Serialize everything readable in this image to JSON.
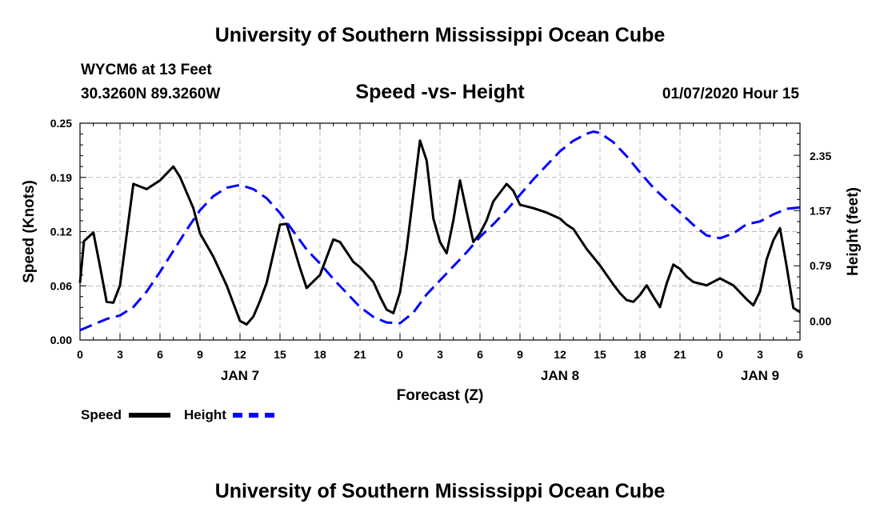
{
  "titles": {
    "top": "University of Southern Mississippi Ocean Cube",
    "bottom": "University of Southern Mississippi Ocean Cube",
    "station_name": "WYCM6 at 13 Feet",
    "station_coords": "30.3260N 89.3260W",
    "date": "01/07/2020 Hour 15"
  },
  "legend": {
    "speed": "Speed",
    "height": "Height"
  },
  "colors": {
    "speed": "#000000",
    "height": "#0000ff",
    "grid": "#bbbbbb"
  },
  "chart_data": {
    "type": "line",
    "title": "Speed -vs- Height",
    "xlabel": "Forecast (Z)",
    "ylabel": "Speed (Knots)",
    "y2label": "Height (feet)",
    "xlim": [
      0,
      54
    ],
    "ylim": [
      0,
      0.25
    ],
    "y2lim": [
      -0.27,
      2.82
    ],
    "y_ticks": [
      "0.00",
      "0.06",
      "0.12",
      "0.19",
      "0.25"
    ],
    "y_tick_values": [
      0,
      0.0625,
      0.125,
      0.1875,
      0.25
    ],
    "y2_ticks": [
      "0.00",
      "0.79",
      "1.57",
      "2.35"
    ],
    "y2_tick_values": [
      0,
      0.79,
      1.57,
      2.35
    ],
    "x_ticks": [
      "0",
      "3",
      "6",
      "9",
      "12",
      "15",
      "18",
      "21",
      "0",
      "3",
      "6",
      "9",
      "12",
      "15",
      "18",
      "21",
      "0",
      "3",
      "6"
    ],
    "day_labels": [
      {
        "label": "JAN 7",
        "at": 12
      },
      {
        "label": "JAN 8",
        "at": 36
      },
      {
        "label": "JAN 9",
        "at": 51
      }
    ],
    "grid": true,
    "series": [
      {
        "name": "Speed",
        "axis": "left",
        "style": "solid",
        "points": [
          [
            0,
            0.066
          ],
          [
            0.3,
            0.114
          ],
          [
            1,
            0.124
          ],
          [
            1.5,
            0.085
          ],
          [
            2,
            0.044
          ],
          [
            2.5,
            0.043
          ],
          [
            3,
            0.063
          ],
          [
            4,
            0.18
          ],
          [
            5,
            0.174
          ],
          [
            6,
            0.184
          ],
          [
            7,
            0.2
          ],
          [
            7.5,
            0.188
          ],
          [
            8.5,
            0.152
          ],
          [
            9,
            0.123
          ],
          [
            10,
            0.096
          ],
          [
            11,
            0.063
          ],
          [
            12,
            0.022
          ],
          [
            12.5,
            0.018
          ],
          [
            13,
            0.027
          ],
          [
            13.5,
            0.045
          ],
          [
            14,
            0.066
          ],
          [
            15,
            0.133
          ],
          [
            15.5,
            0.134
          ],
          [
            16.5,
            0.083
          ],
          [
            17,
            0.06
          ],
          [
            18,
            0.075
          ],
          [
            19,
            0.116
          ],
          [
            19.5,
            0.113
          ],
          [
            20.5,
            0.09
          ],
          [
            21,
            0.084
          ],
          [
            22,
            0.067
          ],
          [
            22.5,
            0.05
          ],
          [
            23,
            0.035
          ],
          [
            23.5,
            0.031
          ],
          [
            24,
            0.055
          ],
          [
            24.5,
            0.105
          ],
          [
            25.5,
            0.23
          ],
          [
            26,
            0.207
          ],
          [
            26.5,
            0.14
          ],
          [
            27,
            0.113
          ],
          [
            27.5,
            0.1
          ],
          [
            28,
            0.138
          ],
          [
            28.5,
            0.184
          ],
          [
            29,
            0.148
          ],
          [
            29.5,
            0.113
          ],
          [
            30,
            0.123
          ],
          [
            30.5,
            0.138
          ],
          [
            31,
            0.16
          ],
          [
            32,
            0.18
          ],
          [
            32.5,
            0.172
          ],
          [
            33,
            0.156
          ],
          [
            34,
            0.152
          ],
          [
            35,
            0.147
          ],
          [
            36,
            0.14
          ],
          [
            36.5,
            0.133
          ],
          [
            37,
            0.128
          ],
          [
            38,
            0.105
          ],
          [
            39,
            0.086
          ],
          [
            39.5,
            0.075
          ],
          [
            40,
            0.064
          ],
          [
            40.5,
            0.054
          ],
          [
            41,
            0.046
          ],
          [
            41.5,
            0.044
          ],
          [
            42,
            0.052
          ],
          [
            42.5,
            0.063
          ],
          [
            43,
            0.05
          ],
          [
            43.5,
            0.038
          ],
          [
            44,
            0.065
          ],
          [
            44.5,
            0.087
          ],
          [
            45,
            0.082
          ],
          [
            45.5,
            0.073
          ],
          [
            46,
            0.067
          ],
          [
            47,
            0.063
          ],
          [
            48,
            0.071
          ],
          [
            49,
            0.063
          ],
          [
            49.5,
            0.055
          ],
          [
            50,
            0.047
          ],
          [
            50.5,
            0.04
          ],
          [
            51,
            0.056
          ],
          [
            51.5,
            0.093
          ],
          [
            52,
            0.115
          ],
          [
            52.5,
            0.129
          ],
          [
            53,
            0.085
          ],
          [
            53.5,
            0.037
          ],
          [
            54,
            0.032
          ]
        ]
      },
      {
        "name": "Height",
        "axis": "right",
        "style": "dashed",
        "points": [
          [
            0,
            -0.13
          ],
          [
            1,
            -0.05
          ],
          [
            2,
            0.03
          ],
          [
            3,
            0.08
          ],
          [
            4,
            0.2
          ],
          [
            5,
            0.42
          ],
          [
            6,
            0.7
          ],
          [
            7,
            1.0
          ],
          [
            8,
            1.3
          ],
          [
            9,
            1.58
          ],
          [
            10,
            1.78
          ],
          [
            11,
            1.9
          ],
          [
            12,
            1.94
          ],
          [
            13,
            1.88
          ],
          [
            14,
            1.75
          ],
          [
            15,
            1.54
          ],
          [
            16,
            1.28
          ],
          [
            17,
            1.02
          ],
          [
            18,
            0.82
          ],
          [
            19,
            0.6
          ],
          [
            20,
            0.4
          ],
          [
            21,
            0.2
          ],
          [
            22,
            0.06
          ],
          [
            23,
            -0.02
          ],
          [
            24,
            -0.03
          ],
          [
            25,
            0.12
          ],
          [
            26,
            0.38
          ],
          [
            27,
            0.58
          ],
          [
            28,
            0.78
          ],
          [
            29,
            0.98
          ],
          [
            30,
            1.2
          ],
          [
            31,
            1.38
          ],
          [
            32,
            1.58
          ],
          [
            33,
            1.8
          ],
          [
            34,
            2.02
          ],
          [
            35,
            2.22
          ],
          [
            36,
            2.42
          ],
          [
            37,
            2.57
          ],
          [
            38,
            2.67
          ],
          [
            38.5,
            2.7
          ],
          [
            39,
            2.68
          ],
          [
            40,
            2.55
          ],
          [
            41,
            2.35
          ],
          [
            42,
            2.12
          ],
          [
            43,
            1.9
          ],
          [
            44,
            1.72
          ],
          [
            45,
            1.55
          ],
          [
            46,
            1.37
          ],
          [
            47,
            1.22
          ],
          [
            48,
            1.18
          ],
          [
            49,
            1.25
          ],
          [
            50,
            1.38
          ],
          [
            51,
            1.42
          ],
          [
            52,
            1.52
          ],
          [
            53,
            1.6
          ],
          [
            54,
            1.62
          ]
        ]
      }
    ]
  }
}
